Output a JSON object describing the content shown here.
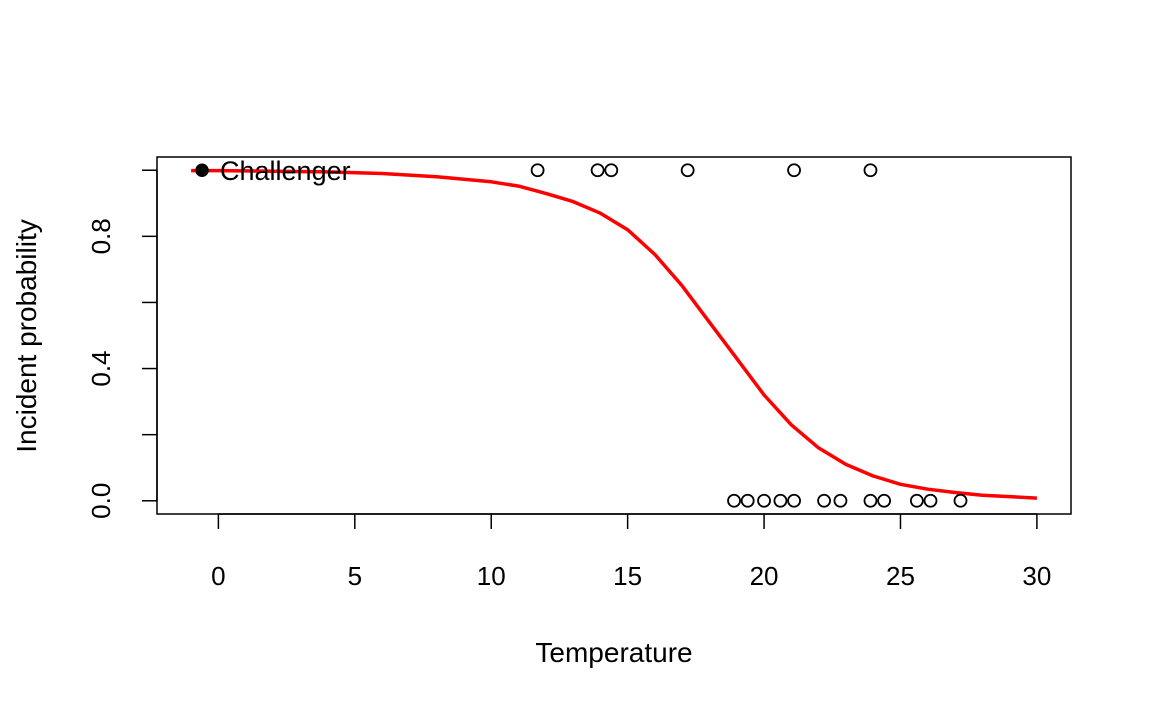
{
  "chart_data": {
    "type": "scatter",
    "title": "",
    "xlabel": "Temperature",
    "ylabel": "Incident probability",
    "xlim": [
      -2.25,
      31.25
    ],
    "ylim": [
      -0.04,
      1.04
    ],
    "x_ticks": [
      0,
      5,
      10,
      15,
      20,
      25,
      30
    ],
    "y_ticks": [
      0.0,
      0.4,
      0.8
    ],
    "y_ticks_unlabeled": [
      0.2,
      0.6,
      1.0
    ],
    "grid": false,
    "points": [
      {
        "x": 11.7,
        "y": 1
      },
      {
        "x": 13.9,
        "y": 1
      },
      {
        "x": 14.4,
        "y": 1
      },
      {
        "x": 17.2,
        "y": 1
      },
      {
        "x": 21.1,
        "y": 1
      },
      {
        "x": 23.9,
        "y": 1
      },
      {
        "x": 18.9,
        "y": 0
      },
      {
        "x": 19.4,
        "y": 0
      },
      {
        "x": 20.0,
        "y": 0
      },
      {
        "x": 20.6,
        "y": 0
      },
      {
        "x": 21.1,
        "y": 0
      },
      {
        "x": 22.2,
        "y": 0
      },
      {
        "x": 22.8,
        "y": 0
      },
      {
        "x": 23.9,
        "y": 0
      },
      {
        "x": 24.4,
        "y": 0
      },
      {
        "x": 25.6,
        "y": 0
      },
      {
        "x": 26.1,
        "y": 0
      },
      {
        "x": 27.2,
        "y": 0
      }
    ],
    "highlight": {
      "x": -0.6,
      "y": 1,
      "label": "Challenger"
    },
    "curve": {
      "color": "#ff0000",
      "x": [
        -1,
        0,
        2,
        4,
        6,
        8,
        10,
        11,
        12,
        13,
        14,
        15,
        16,
        17,
        18,
        19,
        20,
        21,
        22,
        23,
        24,
        25,
        26,
        27,
        28,
        30
      ],
      "y": [
        0.999,
        0.999,
        0.997,
        0.995,
        0.99,
        0.98,
        0.965,
        0.952,
        0.93,
        0.905,
        0.87,
        0.82,
        0.745,
        0.65,
        0.54,
        0.43,
        0.32,
        0.23,
        0.16,
        0.11,
        0.075,
        0.05,
        0.035,
        0.025,
        0.017,
        0.008
      ]
    }
  }
}
